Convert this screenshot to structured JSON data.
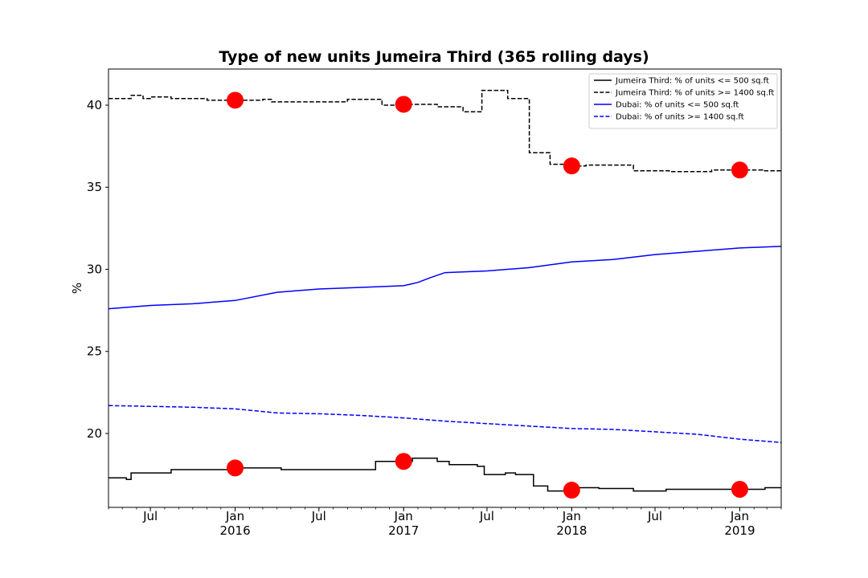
{
  "chart_data": {
    "type": "line",
    "title": "Type of new units Jumeira Third (365 rolling days)",
    "xlabel": "",
    "ylabel": "%",
    "xlim": [
      "2015-04-01",
      "2019-04-01"
    ],
    "ylim": [
      15.5,
      42.2
    ],
    "y_ticks": [
      20,
      25,
      30,
      35,
      40
    ],
    "x_ticks": [
      {
        "date": "2015-07-01",
        "label": "Jul",
        "year": ""
      },
      {
        "date": "2016-01-01",
        "label": "Jan",
        "year": "2016"
      },
      {
        "date": "2016-07-01",
        "label": "Jul",
        "year": ""
      },
      {
        "date": "2017-01-01",
        "label": "Jan",
        "year": "2017"
      },
      {
        "date": "2017-07-01",
        "label": "Jul",
        "year": ""
      },
      {
        "date": "2018-01-01",
        "label": "Jan",
        "year": "2018"
      },
      {
        "date": "2018-07-01",
        "label": "Jul",
        "year": ""
      },
      {
        "date": "2019-01-01",
        "label": "Jan",
        "year": "2019"
      }
    ],
    "grid": false,
    "legend_position": "top-right",
    "series": [
      {
        "name": "Jumeira Third: % of units <= 500 sq.ft",
        "color": "#000000",
        "dash": "solid",
        "step": true,
        "points": [
          [
            "2015-04-01",
            17.3
          ],
          [
            "2015-05-10",
            17.2
          ],
          [
            "2015-05-20",
            17.6
          ],
          [
            "2015-08-15",
            17.8
          ],
          [
            "2016-01-01",
            17.9
          ],
          [
            "2016-03-15",
            17.9
          ],
          [
            "2016-04-10",
            17.8
          ],
          [
            "2016-10-15",
            17.8
          ],
          [
            "2016-11-01",
            18.3
          ],
          [
            "2017-01-01",
            18.3
          ],
          [
            "2017-01-20",
            18.5
          ],
          [
            "2017-03-15",
            18.3
          ],
          [
            "2017-04-10",
            18.1
          ],
          [
            "2017-06-10",
            18.0
          ],
          [
            "2017-06-25",
            17.5
          ],
          [
            "2017-08-10",
            17.6
          ],
          [
            "2017-09-01",
            17.5
          ],
          [
            "2017-10-10",
            16.8
          ],
          [
            "2017-11-10",
            16.5
          ],
          [
            "2018-01-01",
            16.55
          ],
          [
            "2018-01-15",
            16.7
          ],
          [
            "2018-03-01",
            16.65
          ],
          [
            "2018-05-15",
            16.5
          ],
          [
            "2018-07-25",
            16.6
          ],
          [
            "2018-12-01",
            16.6
          ],
          [
            "2019-01-01",
            16.6
          ],
          [
            "2019-02-25",
            16.7
          ],
          [
            "2019-04-01",
            16.7
          ]
        ]
      },
      {
        "name": "Jumeira Third: % of units >= 1400 sq.ft",
        "color": "#000000",
        "dash": "dashed",
        "step": true,
        "points": [
          [
            "2015-04-01",
            40.4
          ],
          [
            "2015-05-20",
            40.6
          ],
          [
            "2015-06-15",
            40.4
          ],
          [
            "2015-07-01",
            40.5
          ],
          [
            "2015-08-15",
            40.4
          ],
          [
            "2015-11-01",
            40.3
          ],
          [
            "2016-01-01",
            40.3
          ],
          [
            "2016-03-01",
            40.35
          ],
          [
            "2016-03-20",
            40.2
          ],
          [
            "2016-09-01",
            40.35
          ],
          [
            "2016-11-15",
            40.0
          ],
          [
            "2017-01-01",
            40.05
          ],
          [
            "2017-03-15",
            39.9
          ],
          [
            "2017-05-10",
            39.6
          ],
          [
            "2017-06-01",
            39.6
          ],
          [
            "2017-06-20",
            40.9
          ],
          [
            "2017-08-15",
            40.4
          ],
          [
            "2017-10-01",
            37.1
          ],
          [
            "2017-11-15",
            36.4
          ],
          [
            "2018-01-01",
            36.3
          ],
          [
            "2018-02-01",
            36.35
          ],
          [
            "2018-05-15",
            36.0
          ],
          [
            "2018-08-01",
            35.95
          ],
          [
            "2018-11-01",
            36.05
          ],
          [
            "2019-01-01",
            36.05
          ],
          [
            "2019-02-20",
            36.0
          ],
          [
            "2019-04-01",
            36.0
          ]
        ]
      },
      {
        "name": "Dubai: % of units <= 500 sq.ft",
        "color": "#0000ff",
        "dash": "solid",
        "step": false,
        "points": [
          [
            "2015-04-01",
            27.6
          ],
          [
            "2015-07-01",
            27.8
          ],
          [
            "2015-10-01",
            27.9
          ],
          [
            "2016-01-01",
            28.1
          ],
          [
            "2016-04-01",
            28.6
          ],
          [
            "2016-07-01",
            28.8
          ],
          [
            "2016-10-01",
            28.9
          ],
          [
            "2017-01-01",
            29.0
          ],
          [
            "2017-02-01",
            29.2
          ],
          [
            "2017-03-01",
            29.5
          ],
          [
            "2017-04-01",
            29.8
          ],
          [
            "2017-07-01",
            29.9
          ],
          [
            "2017-10-01",
            30.1
          ],
          [
            "2018-01-01",
            30.45
          ],
          [
            "2018-04-01",
            30.6
          ],
          [
            "2018-07-01",
            30.9
          ],
          [
            "2018-10-01",
            31.1
          ],
          [
            "2019-01-01",
            31.3
          ],
          [
            "2019-04-01",
            31.4
          ]
        ]
      },
      {
        "name": "Dubai: % of units >= 1400 sq.ft",
        "color": "#0000ff",
        "dash": "dashed",
        "step": false,
        "points": [
          [
            "2015-04-01",
            21.7
          ],
          [
            "2015-07-01",
            21.65
          ],
          [
            "2015-10-01",
            21.6
          ],
          [
            "2016-01-01",
            21.5
          ],
          [
            "2016-04-01",
            21.25
          ],
          [
            "2016-07-01",
            21.2
          ],
          [
            "2016-10-01",
            21.1
          ],
          [
            "2017-01-01",
            20.95
          ],
          [
            "2017-04-01",
            20.75
          ],
          [
            "2017-07-01",
            20.6
          ],
          [
            "2017-10-01",
            20.45
          ],
          [
            "2018-01-01",
            20.3
          ],
          [
            "2018-04-01",
            20.25
          ],
          [
            "2018-07-01",
            20.1
          ],
          [
            "2018-10-01",
            19.95
          ],
          [
            "2019-01-01",
            19.65
          ],
          [
            "2019-04-01",
            19.45
          ]
        ]
      }
    ],
    "markers": {
      "color": "#ff0000",
      "points": [
        [
          "2016-01-01",
          40.3
        ],
        [
          "2017-01-01",
          40.05
        ],
        [
          "2018-01-01",
          36.3
        ],
        [
          "2019-01-01",
          36.05
        ],
        [
          "2016-01-01",
          17.9
        ],
        [
          "2017-01-01",
          18.3
        ],
        [
          "2018-01-01",
          16.55
        ],
        [
          "2019-01-01",
          16.6
        ]
      ]
    }
  }
}
